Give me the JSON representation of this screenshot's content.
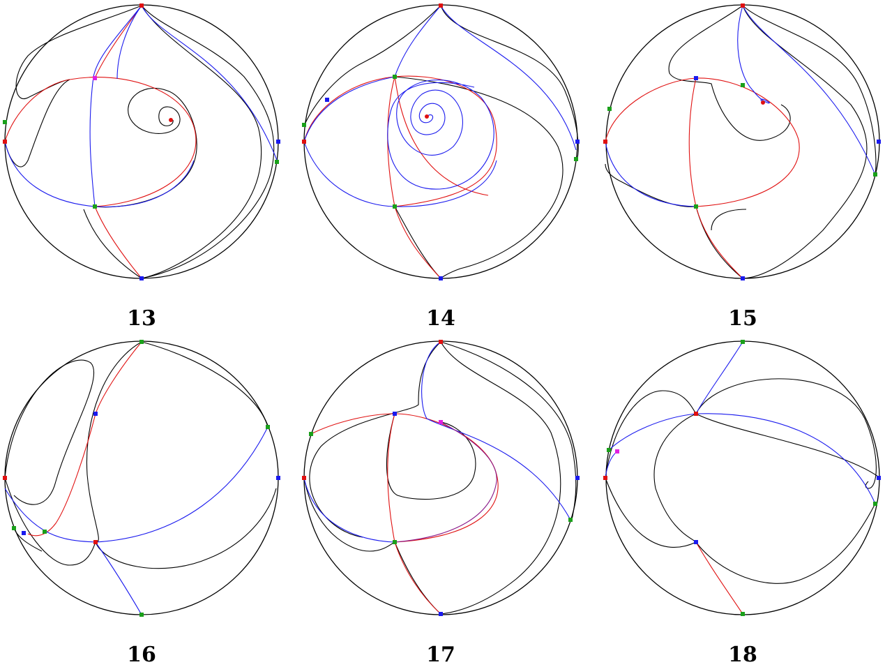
{
  "panels": [
    {
      "label": "13"
    },
    {
      "label": "14"
    },
    {
      "label": "15"
    },
    {
      "label": "16"
    },
    {
      "label": "17"
    },
    {
      "label": "18"
    }
  ],
  "colors": {
    "red": "#e01010",
    "blue": "#1a1aee",
    "green": "#1aa01a",
    "magenta": "#e020e0",
    "black": "#000000"
  }
}
